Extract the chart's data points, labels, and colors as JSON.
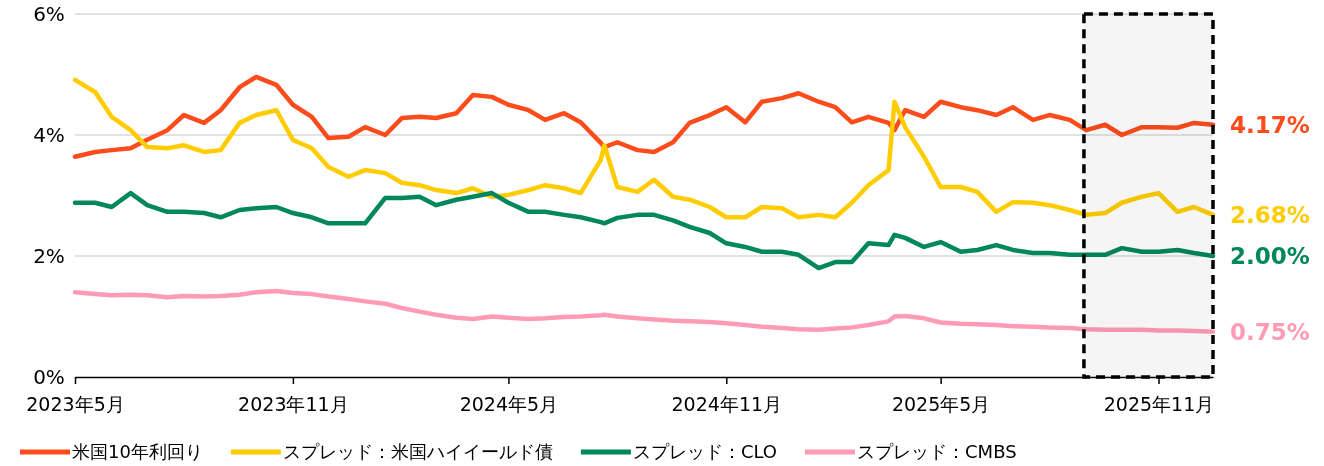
{
  "chart_data": {
    "type": "line",
    "x": [
      "2023-05-15",
      "2023-06-01",
      "2023-06-15",
      "2023-07-01",
      "2023-07-15",
      "2023-08-01",
      "2023-08-15",
      "2023-09-01",
      "2023-09-15",
      "2023-10-01",
      "2023-10-15",
      "2023-11-01",
      "2023-11-15",
      "2023-12-01",
      "2023-12-15",
      "2024-01-01",
      "2024-01-15",
      "2024-02-01",
      "2024-02-15",
      "2024-03-01",
      "2024-03-15",
      "2024-04-01",
      "2024-04-15",
      "2024-05-01",
      "2024-05-15",
      "2024-06-01",
      "2024-06-15",
      "2024-07-01",
      "2024-07-15",
      "2024-08-01",
      "2024-08-04",
      "2024-08-15",
      "2024-09-01",
      "2024-09-15",
      "2024-10-01",
      "2024-10-15",
      "2024-11-01",
      "2024-11-15",
      "2024-12-01",
      "2024-12-15",
      "2025-01-01",
      "2025-01-15",
      "2025-02-01",
      "2025-02-15",
      "2025-03-01",
      "2025-03-15",
      "2025-04-01",
      "2025-04-06",
      "2025-04-15",
      "2025-05-01",
      "2025-05-15",
      "2025-06-01",
      "2025-06-15",
      "2025-07-01",
      "2025-07-15",
      "2025-08-01",
      "2025-08-15",
      "2025-09-01",
      "2025-09-15",
      "2025-10-01",
      "2025-10-15",
      "2025-11-01",
      "2025-11-15",
      "2025-12-01",
      "2025-12-15",
      "2025-12-31"
    ],
    "series": [
      {
        "name": "米国10年利回り",
        "color": "#fc4c1c",
        "values": [
          3.64,
          3.72,
          3.75,
          3.78,
          3.92,
          4.08,
          4.33,
          4.2,
          4.41,
          4.79,
          4.96,
          4.83,
          4.5,
          4.3,
          3.95,
          3.97,
          4.13,
          4.0,
          4.28,
          4.3,
          4.28,
          4.36,
          4.66,
          4.63,
          4.5,
          4.41,
          4.25,
          4.36,
          4.21,
          3.87,
          3.8,
          3.88,
          3.75,
          3.72,
          3.88,
          4.2,
          4.33,
          4.46,
          4.21,
          4.55,
          4.61,
          4.69,
          4.55,
          4.46,
          4.21,
          4.3,
          4.2,
          4.08,
          4.41,
          4.3,
          4.55,
          4.46,
          4.41,
          4.33,
          4.46,
          4.25,
          4.33,
          4.25,
          4.08,
          4.17,
          4.0,
          4.13,
          4.13,
          4.12,
          4.2,
          4.17
        ],
        "value_labels": [
          null,
          null,
          null,
          null,
          null,
          null,
          null,
          null,
          null,
          null,
          null,
          null,
          null,
          null,
          null,
          null,
          null,
          null,
          null,
          null,
          null,
          null,
          null,
          null,
          null,
          null,
          null,
          null,
          null,
          null,
          null,
          null,
          null,
          null,
          null,
          null,
          null,
          null,
          null,
          null,
          null,
          null,
          null,
          null,
          null,
          null,
          null,
          null,
          null,
          null,
          null,
          null,
          null,
          null,
          null,
          null,
          null,
          null,
          null,
          null,
          null,
          null,
          null,
          null,
          null,
          "4.17%"
        ]
      },
      {
        "name": "スプレッド：米国ハイイールド債",
        "color": "#ffcc00",
        "values": [
          4.91,
          4.71,
          4.3,
          4.08,
          3.8,
          3.78,
          3.83,
          3.72,
          3.75,
          4.2,
          4.33,
          4.41,
          3.92,
          3.78,
          3.47,
          3.31,
          3.42,
          3.37,
          3.21,
          3.17,
          3.09,
          3.04,
          3.12,
          2.98,
          3.01,
          3.09,
          3.17,
          3.12,
          3.04,
          3.59,
          3.83,
          3.14,
          3.06,
          3.26,
          2.98,
          2.93,
          2.81,
          2.64,
          2.64,
          2.81,
          2.79,
          2.64,
          2.68,
          2.64,
          2.88,
          3.17,
          3.42,
          4.55,
          4.13,
          3.64,
          3.14,
          3.14,
          3.06,
          2.73,
          2.89,
          2.88,
          2.84,
          2.76,
          2.68,
          2.71,
          2.88,
          2.98,
          3.04,
          2.73,
          2.81,
          2.68
        ],
        "value_labels": [
          null,
          null,
          null,
          null,
          null,
          null,
          null,
          null,
          null,
          null,
          null,
          null,
          null,
          null,
          null,
          null,
          null,
          null,
          null,
          null,
          null,
          null,
          null,
          null,
          null,
          null,
          null,
          null,
          null,
          null,
          null,
          null,
          null,
          null,
          null,
          null,
          null,
          null,
          null,
          null,
          null,
          null,
          null,
          null,
          null,
          null,
          null,
          null,
          null,
          null,
          null,
          null,
          null,
          null,
          null,
          null,
          null,
          null,
          null,
          null,
          null,
          null,
          null,
          null,
          null,
          "2.68%"
        ]
      },
      {
        "name": "スプレッド：CLO",
        "color": "#00875a",
        "values": [
          2.88,
          2.88,
          2.81,
          3.04,
          2.84,
          2.73,
          2.73,
          2.71,
          2.64,
          2.76,
          2.79,
          2.81,
          2.71,
          2.64,
          2.54,
          2.54,
          2.54,
          2.96,
          2.96,
          2.98,
          2.84,
          2.93,
          2.98,
          3.04,
          2.88,
          2.73,
          2.73,
          2.68,
          2.64,
          2.56,
          2.54,
          2.63,
          2.68,
          2.68,
          2.59,
          2.48,
          2.38,
          2.21,
          2.15,
          2.07,
          2.07,
          2.02,
          1.8,
          1.9,
          1.9,
          2.21,
          2.18,
          2.35,
          2.3,
          2.15,
          2.23,
          2.07,
          2.1,
          2.18,
          2.1,
          2.05,
          2.05,
          2.02,
          2.02,
          2.02,
          2.13,
          2.07,
          2.07,
          2.1,
          2.05,
          2.0
        ],
        "value_labels": [
          null,
          null,
          null,
          null,
          null,
          null,
          null,
          null,
          null,
          null,
          null,
          null,
          null,
          null,
          null,
          null,
          null,
          null,
          null,
          null,
          null,
          null,
          null,
          null,
          null,
          null,
          null,
          null,
          null,
          null,
          null,
          null,
          null,
          null,
          null,
          null,
          null,
          null,
          null,
          null,
          null,
          null,
          null,
          null,
          null,
          null,
          null,
          null,
          null,
          null,
          null,
          null,
          null,
          null,
          null,
          null,
          null,
          null,
          null,
          null,
          null,
          null,
          null,
          null,
          null,
          "2.00%"
        ]
      },
      {
        "name": "スプレッド：CMBS",
        "color": "#ff9bb5",
        "values": [
          1.4,
          1.37,
          1.35,
          1.36,
          1.35,
          1.32,
          1.34,
          1.33,
          1.34,
          1.36,
          1.4,
          1.42,
          1.39,
          1.37,
          1.33,
          1.29,
          1.25,
          1.21,
          1.14,
          1.08,
          1.03,
          0.98,
          0.96,
          1.0,
          0.98,
          0.96,
          0.97,
          0.99,
          1.0,
          1.02,
          1.03,
          1.0,
          0.97,
          0.95,
          0.93,
          0.92,
          0.91,
          0.89,
          0.86,
          0.83,
          0.81,
          0.79,
          0.78,
          0.8,
          0.82,
          0.86,
          0.92,
          1.0,
          1.01,
          0.97,
          0.9,
          0.88,
          0.87,
          0.86,
          0.84,
          0.83,
          0.82,
          0.81,
          0.79,
          0.78,
          0.78,
          0.78,
          0.77,
          0.77,
          0.76,
          0.75
        ],
        "value_labels": [
          null,
          null,
          null,
          null,
          null,
          null,
          null,
          null,
          null,
          null,
          null,
          null,
          null,
          null,
          null,
          null,
          null,
          null,
          null,
          null,
          null,
          null,
          null,
          null,
          null,
          null,
          null,
          null,
          null,
          null,
          null,
          null,
          null,
          null,
          null,
          null,
          null,
          null,
          null,
          null,
          null,
          null,
          null,
          null,
          null,
          null,
          null,
          null,
          null,
          null,
          null,
          null,
          null,
          null,
          null,
          null,
          null,
          null,
          null,
          null,
          null,
          null,
          null,
          null,
          null,
          "0.75%"
        ]
      }
    ],
    "xlim": [
      "2023-05-15",
      "2025-12-31"
    ],
    "xticks": [
      {
        "value": "2023-05-15",
        "label": "2023年5月"
      },
      {
        "value": "2023-11-15",
        "label": "2023年11月"
      },
      {
        "value": "2024-05-15",
        "label": "2024年5月"
      },
      {
        "value": "2024-11-15",
        "label": "2024年11月"
      },
      {
        "value": "2025-05-15",
        "label": "2025年5月"
      },
      {
        "value": "2025-11-15",
        "label": "2025年11月"
      }
    ],
    "ylim": [
      0,
      6
    ],
    "yticks": [
      {
        "value": 0,
        "label": "0%"
      },
      {
        "value": 2,
        "label": "2%"
      },
      {
        "value": 4,
        "label": "4%"
      },
      {
        "value": 6,
        "label": "6%"
      }
    ],
    "bands": [
      {
        "axis": "x",
        "from": "2025-09-13",
        "to": "2025-12-31",
        "color": "#000000"
      }
    ],
    "grid": "y",
    "legend": "bottom",
    "marker": "none",
    "line_style": "solid"
  }
}
